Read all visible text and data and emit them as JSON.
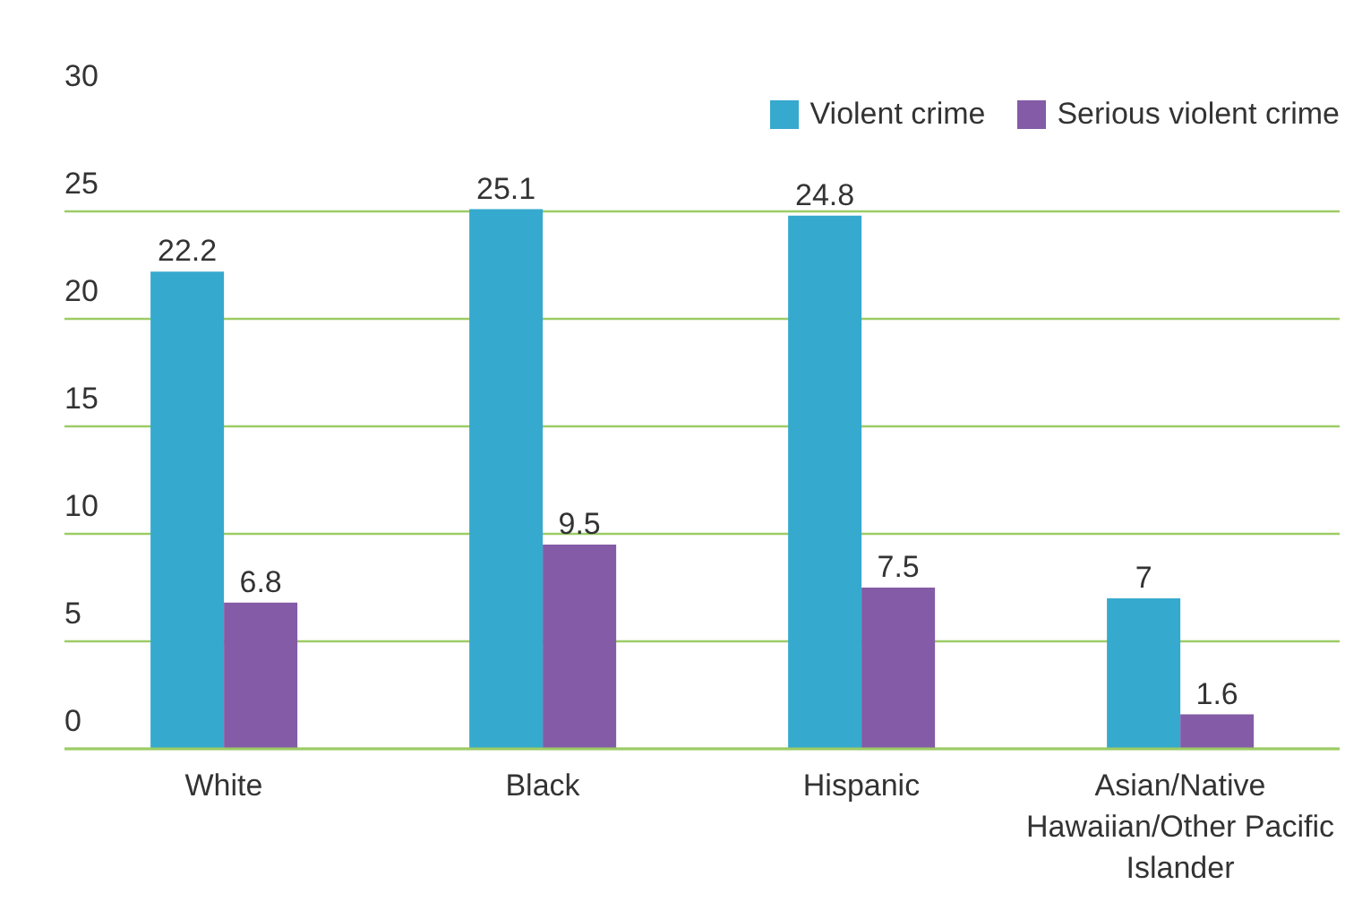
{
  "chart_data": {
    "type": "bar",
    "categories": [
      "White",
      "Black",
      "Hispanic",
      "Asian/Native Hawaiian/Other Pacific Islander"
    ],
    "series": [
      {
        "name": "Violent crime",
        "color": "#36a9ce",
        "values": [
          22.2,
          25.1,
          24.8,
          7
        ]
      },
      {
        "name": "Serious violent crime",
        "color": "#845ba6",
        "values": [
          6.8,
          9.5,
          7.5,
          1.6
        ]
      }
    ],
    "ylim": [
      0,
      30
    ],
    "yticks": [
      0,
      5,
      10,
      15,
      20,
      25,
      30
    ],
    "grid": "y",
    "legend": "top right",
    "data_labels": true
  }
}
